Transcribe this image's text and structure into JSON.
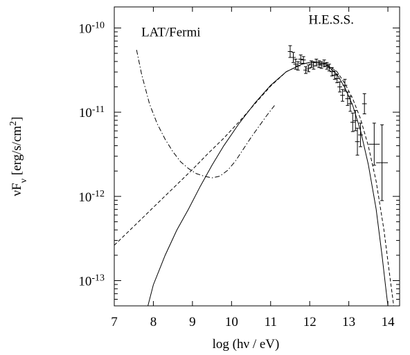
{
  "chart_data": {
    "type": "line",
    "xlabel": "log (hν / eV)",
    "ylabel": "νFν [erg/s/cm²]",
    "xlim": [
      7,
      14.3
    ],
    "ylim_log10": [
      -13.3,
      -9.75
    ],
    "y_scale": "log",
    "x_ticks": [
      7,
      8,
      9,
      10,
      11,
      12,
      13,
      14
    ],
    "y_ticks": [
      {
        "exp": -10,
        "base": "10",
        "sup": "-10"
      },
      {
        "exp": -11,
        "base": "10",
        "sup": "-11"
      },
      {
        "exp": -12,
        "base": "10",
        "sup": "-12"
      },
      {
        "exp": -13,
        "base": "10",
        "sup": "-13"
      }
    ],
    "annotations": [
      {
        "text": "LAT/Fermi",
        "x": 8.45,
        "y_log10": -10.1
      },
      {
        "text": "H.E.S.S.",
        "x": 12.55,
        "y_log10": -9.95
      }
    ],
    "series": [
      {
        "style": "solid",
        "x": [
          7.75,
          8.0,
          8.3,
          8.6,
          8.9,
          9.2,
          9.5,
          9.8,
          10.2,
          10.6,
          11.0,
          11.4,
          11.8,
          12.1,
          12.4,
          12.7,
          12.9,
          13.1,
          13.3,
          13.5,
          13.7,
          13.85,
          13.95,
          14.0
        ],
        "y_log10": [
          -13.5,
          -13.05,
          -12.7,
          -12.4,
          -12.15,
          -11.88,
          -11.63,
          -11.4,
          -11.13,
          -10.89,
          -10.68,
          -10.52,
          -10.43,
          -10.4,
          -10.43,
          -10.55,
          -10.71,
          -10.92,
          -11.22,
          -11.62,
          -12.15,
          -12.7,
          -13.1,
          -13.3
        ]
      },
      {
        "style": "dashed",
        "x": [
          7.0,
          7.4,
          7.8,
          8.2,
          8.6,
          9.0,
          9.4,
          9.8,
          10.2,
          10.6,
          11.0,
          11.4,
          11.8,
          12.1,
          12.4,
          12.7,
          12.9,
          13.1,
          13.3,
          13.5,
          13.7,
          13.9,
          14.05,
          14.15
        ],
        "y_log10": [
          -12.58,
          -12.4,
          -12.22,
          -12.04,
          -11.86,
          -11.68,
          -11.49,
          -11.31,
          -11.11,
          -10.9,
          -10.69,
          -10.52,
          -10.43,
          -10.4,
          -10.42,
          -10.52,
          -10.66,
          -10.84,
          -11.08,
          -11.4,
          -11.82,
          -12.4,
          -12.95,
          -13.3
        ]
      },
      {
        "style": "dash-dot",
        "x": [
          7.57,
          7.7,
          7.9,
          8.1,
          8.3,
          8.5,
          8.7,
          8.9,
          9.1,
          9.3,
          9.5,
          9.7,
          9.9,
          10.1,
          10.3,
          10.5,
          10.7,
          10.9,
          11.1
        ],
        "y_log10": [
          -10.26,
          -10.55,
          -10.9,
          -11.14,
          -11.32,
          -11.47,
          -11.59,
          -11.67,
          -11.73,
          -11.76,
          -11.78,
          -11.76,
          -11.69,
          -11.58,
          -11.44,
          -11.3,
          -11.17,
          -11.04,
          -10.92
        ]
      }
    ],
    "hess_points": [
      {
        "x": 11.5,
        "y_log10": -10.28,
        "xerr": 0.06,
        "yerr": 0.07
      },
      {
        "x": 11.58,
        "y_log10": -10.35,
        "xerr": 0.06,
        "yerr": 0.06
      },
      {
        "x": 11.64,
        "y_log10": -10.43,
        "xerr": 0.06,
        "yerr": 0.06
      },
      {
        "x": 11.7,
        "y_log10": -10.45,
        "xerr": 0.06,
        "yerr": 0.05
      },
      {
        "x": 11.77,
        "y_log10": -10.37,
        "xerr": 0.06,
        "yerr": 0.05
      },
      {
        "x": 11.84,
        "y_log10": -10.38,
        "xerr": 0.06,
        "yerr": 0.04
      },
      {
        "x": 11.9,
        "y_log10": -10.5,
        "xerr": 0.06,
        "yerr": 0.04
      },
      {
        "x": 11.97,
        "y_log10": -10.48,
        "xerr": 0.06,
        "yerr": 0.04
      },
      {
        "x": 12.04,
        "y_log10": -10.43,
        "xerr": 0.06,
        "yerr": 0.04
      },
      {
        "x": 12.1,
        "y_log10": -10.45,
        "xerr": 0.06,
        "yerr": 0.04
      },
      {
        "x": 12.17,
        "y_log10": -10.41,
        "xerr": 0.06,
        "yerr": 0.04
      },
      {
        "x": 12.24,
        "y_log10": -10.43,
        "xerr": 0.06,
        "yerr": 0.04
      },
      {
        "x": 12.3,
        "y_log10": -10.44,
        "xerr": 0.06,
        "yerr": 0.04
      },
      {
        "x": 12.37,
        "y_log10": -10.42,
        "xerr": 0.06,
        "yerr": 0.04
      },
      {
        "x": 12.44,
        "y_log10": -10.45,
        "xerr": 0.06,
        "yerr": 0.04
      },
      {
        "x": 12.5,
        "y_log10": -10.47,
        "xerr": 0.06,
        "yerr": 0.04
      },
      {
        "x": 12.57,
        "y_log10": -10.52,
        "xerr": 0.06,
        "yerr": 0.05
      },
      {
        "x": 12.64,
        "y_log10": -10.56,
        "xerr": 0.06,
        "yerr": 0.05
      },
      {
        "x": 12.7,
        "y_log10": -10.6,
        "xerr": 0.06,
        "yerr": 0.05
      },
      {
        "x": 12.77,
        "y_log10": -10.7,
        "xerr": 0.06,
        "yerr": 0.06
      },
      {
        "x": 12.84,
        "y_log10": -10.8,
        "xerr": 0.06,
        "yerr": 0.07
      },
      {
        "x": 12.9,
        "y_log10": -10.68,
        "xerr": 0.06,
        "yerr": 0.07
      },
      {
        "x": 12.97,
        "y_log10": -10.84,
        "xerr": 0.06,
        "yerr": 0.08
      },
      {
        "x": 13.04,
        "y_log10": -10.9,
        "xerr": 0.06,
        "yerr": 0.09
      },
      {
        "x": 13.1,
        "y_log10": -11.12,
        "xerr": 0.06,
        "yerr": 0.11
      },
      {
        "x": 13.17,
        "y_log10": -11.1,
        "xerr": 0.06,
        "yerr": 0.12
      },
      {
        "x": 13.22,
        "y_log10": -11.35,
        "xerr": 0.06,
        "yerr": 0.16
      },
      {
        "x": 13.3,
        "y_log10": -11.27,
        "xerr": 0.06,
        "yerr": 0.14
      },
      {
        "x": 13.4,
        "y_log10": -10.9,
        "xerr": 0.06,
        "yerr": 0.12
      },
      {
        "x": 13.65,
        "y_log10": -11.38,
        "xerr": 0.14,
        "yerr": 0.25
      },
      {
        "x": 13.85,
        "y_log10": -11.6,
        "xerr": 0.15,
        "yerr": 0.45
      }
    ],
    "grid": false,
    "legend": "none"
  }
}
